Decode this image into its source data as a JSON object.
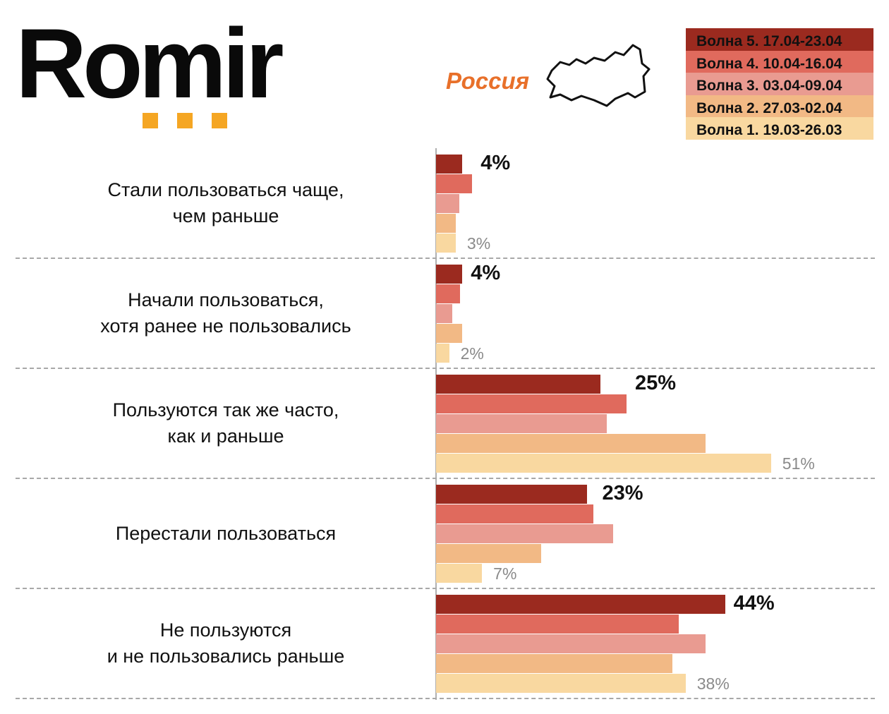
{
  "logo": {
    "text": "Romir",
    "accent": "#f5a623"
  },
  "region": {
    "label": "Россия",
    "color": "#e8702a",
    "icon": "russia-map-icon"
  },
  "chart_data": {
    "type": "bar",
    "orientation": "horizontal",
    "unit": "%",
    "xlim": [
      0,
      55
    ],
    "grid": false,
    "legend_position": "top-right",
    "categories": [
      [
        "Стали пользоваться чаще,",
        "чем раньше"
      ],
      [
        "Начали пользоваться,",
        "хотя ранее не пользовались"
      ],
      [
        "Пользуются так же часто,",
        "как и раньше"
      ],
      [
        "Перестали пользоваться"
      ],
      [
        "Не пользуются",
        "и не пользовались раньше"
      ]
    ],
    "series": [
      {
        "name": "Волна 5. 17.04-23.04",
        "color": "#9b2a1f",
        "values": [
          4,
          4,
          25,
          23,
          44
        ]
      },
      {
        "name": "Волна 4. 10.04-16.04",
        "color": "#e06a5d",
        "values": [
          5.5,
          3.7,
          29,
          24,
          37
        ]
      },
      {
        "name": "Волна 3. 03.04-09.04",
        "color": "#e99b91",
        "values": [
          3.5,
          2.5,
          26,
          27,
          41
        ]
      },
      {
        "name": "Волна 2. 27.03-02.04",
        "color": "#f2b985",
        "values": [
          3,
          4,
          41,
          16,
          36
        ]
      },
      {
        "name": "Волна 1. 19.03-26.03",
        "color": "#f9d8a0",
        "values": [
          3,
          2,
          51,
          7,
          38
        ]
      }
    ],
    "data_labels": {
      "latest": [
        "4%",
        "4%",
        "25%",
        "23%",
        "44%"
      ],
      "first": [
        "3%",
        "2%",
        "51%",
        "7%",
        "38%"
      ]
    }
  }
}
